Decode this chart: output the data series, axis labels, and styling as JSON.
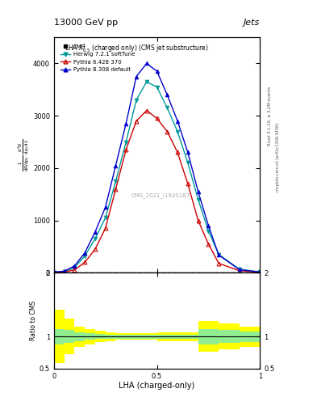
{
  "title_top": "13000 GeV pp",
  "title_right": "Jets",
  "plot_title": "LHA $\\lambda^{1}_{0.5}$ (charged only) (CMS jet substructure)",
  "xlabel": "LHA (charged-only)",
  "ylabel_main": "$\\frac{1}{\\mathrm{d}N\\,/\\,\\mathrm{d}p_T}\\,\\frac{\\mathrm{d}^2N}{\\mathrm{d}p_T\\,\\mathrm{d}\\lambda}$",
  "ylabel_ratio": "Ratio to CMS",
  "watermark": "CMS_2021_I1920187",
  "rivet_text": "Rivet 3.1.10, ≥ 3.2M events",
  "mcplots_text": "mcplots.cern.ch [arXiv:1306.3436]",
  "herwig_x": [
    0.0,
    0.05,
    0.1,
    0.15,
    0.2,
    0.25,
    0.3,
    0.35,
    0.4,
    0.45,
    0.5,
    0.55,
    0.6,
    0.65,
    0.7,
    0.75,
    0.8,
    0.9,
    1.0
  ],
  "herwig_y": [
    10,
    20,
    100,
    320,
    650,
    1050,
    1750,
    2500,
    3300,
    3650,
    3550,
    3150,
    2700,
    2100,
    1400,
    800,
    350,
    70,
    15
  ],
  "herwig_color": "#009999",
  "pythia6_x": [
    0.0,
    0.05,
    0.1,
    0.15,
    0.2,
    0.25,
    0.3,
    0.35,
    0.4,
    0.45,
    0.5,
    0.55,
    0.6,
    0.65,
    0.7,
    0.75,
    0.8,
    0.9,
    1.0
  ],
  "pythia6_y": [
    5,
    15,
    55,
    200,
    450,
    850,
    1600,
    2350,
    2900,
    3100,
    2950,
    2700,
    2300,
    1700,
    1000,
    550,
    180,
    40,
    8
  ],
  "pythia6_color": "#cc0000",
  "pythia8_x": [
    0.0,
    0.05,
    0.1,
    0.15,
    0.2,
    0.25,
    0.3,
    0.35,
    0.4,
    0.45,
    0.5,
    0.55,
    0.6,
    0.65,
    0.7,
    0.75,
    0.8,
    0.9,
    1.0
  ],
  "pythia8_y": [
    15,
    30,
    130,
    380,
    780,
    1250,
    2050,
    2850,
    3750,
    4000,
    3850,
    3400,
    2900,
    2300,
    1550,
    900,
    340,
    60,
    15
  ],
  "pythia8_color": "#0000cc",
  "ratio_x_edges": [
    0.0,
    0.05,
    0.1,
    0.15,
    0.2,
    0.25,
    0.3,
    0.35,
    0.4,
    0.45,
    0.5,
    0.55,
    0.6,
    0.65,
    0.7,
    0.75,
    0.8,
    0.85,
    0.9,
    0.95,
    1.0
  ],
  "ratio_green_lo": [
    0.88,
    0.9,
    0.93,
    0.95,
    0.96,
    0.97,
    0.97,
    0.97,
    0.97,
    0.97,
    0.97,
    0.97,
    0.97,
    0.97,
    0.88,
    0.88,
    0.9,
    0.9,
    0.92,
    0.92
  ],
  "ratio_green_hi": [
    1.12,
    1.1,
    1.07,
    1.05,
    1.04,
    1.03,
    1.03,
    1.03,
    1.03,
    1.03,
    1.03,
    1.03,
    1.03,
    1.03,
    1.12,
    1.12,
    1.1,
    1.1,
    1.08,
    1.08
  ],
  "ratio_yellow_lo": [
    0.58,
    0.72,
    0.84,
    0.88,
    0.91,
    0.93,
    0.95,
    0.95,
    0.95,
    0.95,
    0.93,
    0.93,
    0.93,
    0.93,
    0.76,
    0.76,
    0.8,
    0.8,
    0.84,
    0.84
  ],
  "ratio_yellow_hi": [
    1.42,
    1.28,
    1.16,
    1.12,
    1.09,
    1.07,
    1.05,
    1.05,
    1.05,
    1.05,
    1.07,
    1.07,
    1.07,
    1.07,
    1.24,
    1.24,
    1.2,
    1.2,
    1.16,
    1.16
  ],
  "ylim_main": [
    0,
    4500
  ],
  "ylim_ratio": [
    0.5,
    2.0
  ],
  "xlim": [
    0,
    1
  ],
  "yticks_main": [
    0,
    1000,
    2000,
    3000,
    4000
  ],
  "yticks_ratio": [
    0.5,
    1.0,
    2.0
  ],
  "xticks": [
    0,
    0.5,
    1.0
  ],
  "background_color": "#ffffff"
}
